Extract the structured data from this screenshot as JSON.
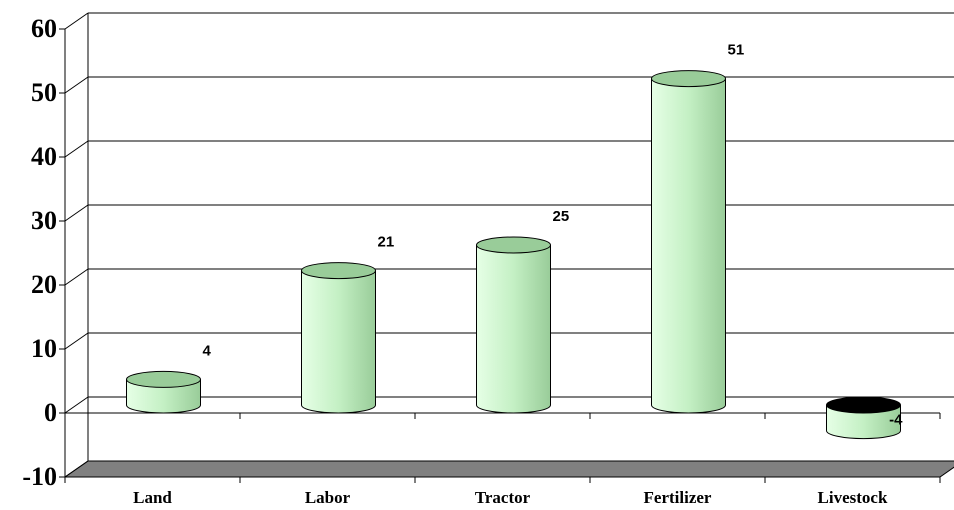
{
  "chart_data": {
    "type": "bar",
    "categories": [
      "Land",
      "Labor",
      "Tractor",
      "Fertilizer",
      "Livestock"
    ],
    "values": [
      4,
      21,
      25,
      51,
      -4
    ],
    "color": "#ccffcc",
    "ylim": [
      -10,
      60
    ],
    "yticks": [
      -10,
      0,
      10,
      20,
      30,
      40,
      50,
      60
    ],
    "grid": true
  }
}
